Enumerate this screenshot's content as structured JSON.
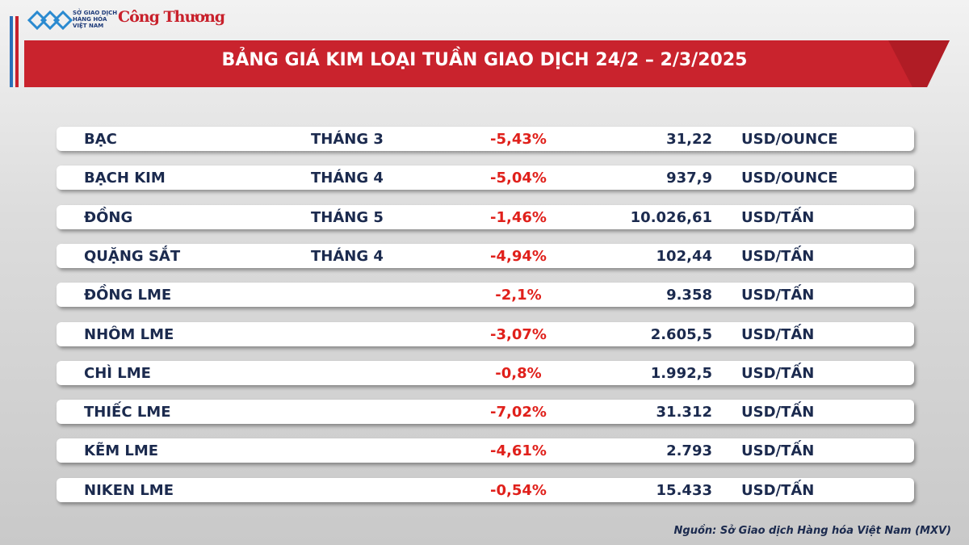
{
  "header": {
    "logo_left": "SỞ GIAO DỊCH HÀNG HÓA VIỆT NAM",
    "logo_right": "Công Thương",
    "title": "BẢNG GIÁ KIM LOẠI TUẦN GIAO DỊCH 24/2 – 2/3/2025"
  },
  "table": {
    "rows": [
      {
        "name": "BẠC",
        "month": "THÁNG 3",
        "change": "-5,43%",
        "price": "31,22",
        "unit": "USD/OUNCE"
      },
      {
        "name": "BẠCH KIM",
        "month": "THÁNG 4",
        "change": "-5,04%",
        "price": "937,9",
        "unit": "USD/OUNCE"
      },
      {
        "name": "ĐỒNG",
        "month": "THÁNG 5",
        "change": "-1,46%",
        "price": "10.026,61",
        "unit": "USD/TẤN"
      },
      {
        "name": "QUẶNG SẮT",
        "month": "THÁNG 4",
        "change": "-4,94%",
        "price": "102,44",
        "unit": "USD/TẤN"
      },
      {
        "name": "ĐỒNG LME",
        "change": "-2,1%",
        "price": "9.358",
        "unit": "USD/TẤN"
      },
      {
        "name": "NHÔM LME",
        "change": "-3,07%",
        "price": "2.605,5",
        "unit": "USD/TẤN"
      },
      {
        "name": "CHÌ LME",
        "change": "-0,8%",
        "price": "1.992,5",
        "unit": "USD/TẤN"
      },
      {
        "name": "THIẾC LME",
        "change": "-7,02%",
        "price": "31.312",
        "unit": "USD/TẤN"
      },
      {
        "name": "KẼM LME",
        "change": "-4,61%",
        "price": "2.793",
        "unit": "USD/TẤN"
      },
      {
        "name": "NIKEN LME",
        "change": "-0,54%",
        "price": "15.433",
        "unit": "USD/TẤN"
      }
    ]
  },
  "footer": {
    "source": "Nguồn: Sở Giao dịch Hàng hóa Việt Nam (MXV)"
  }
}
